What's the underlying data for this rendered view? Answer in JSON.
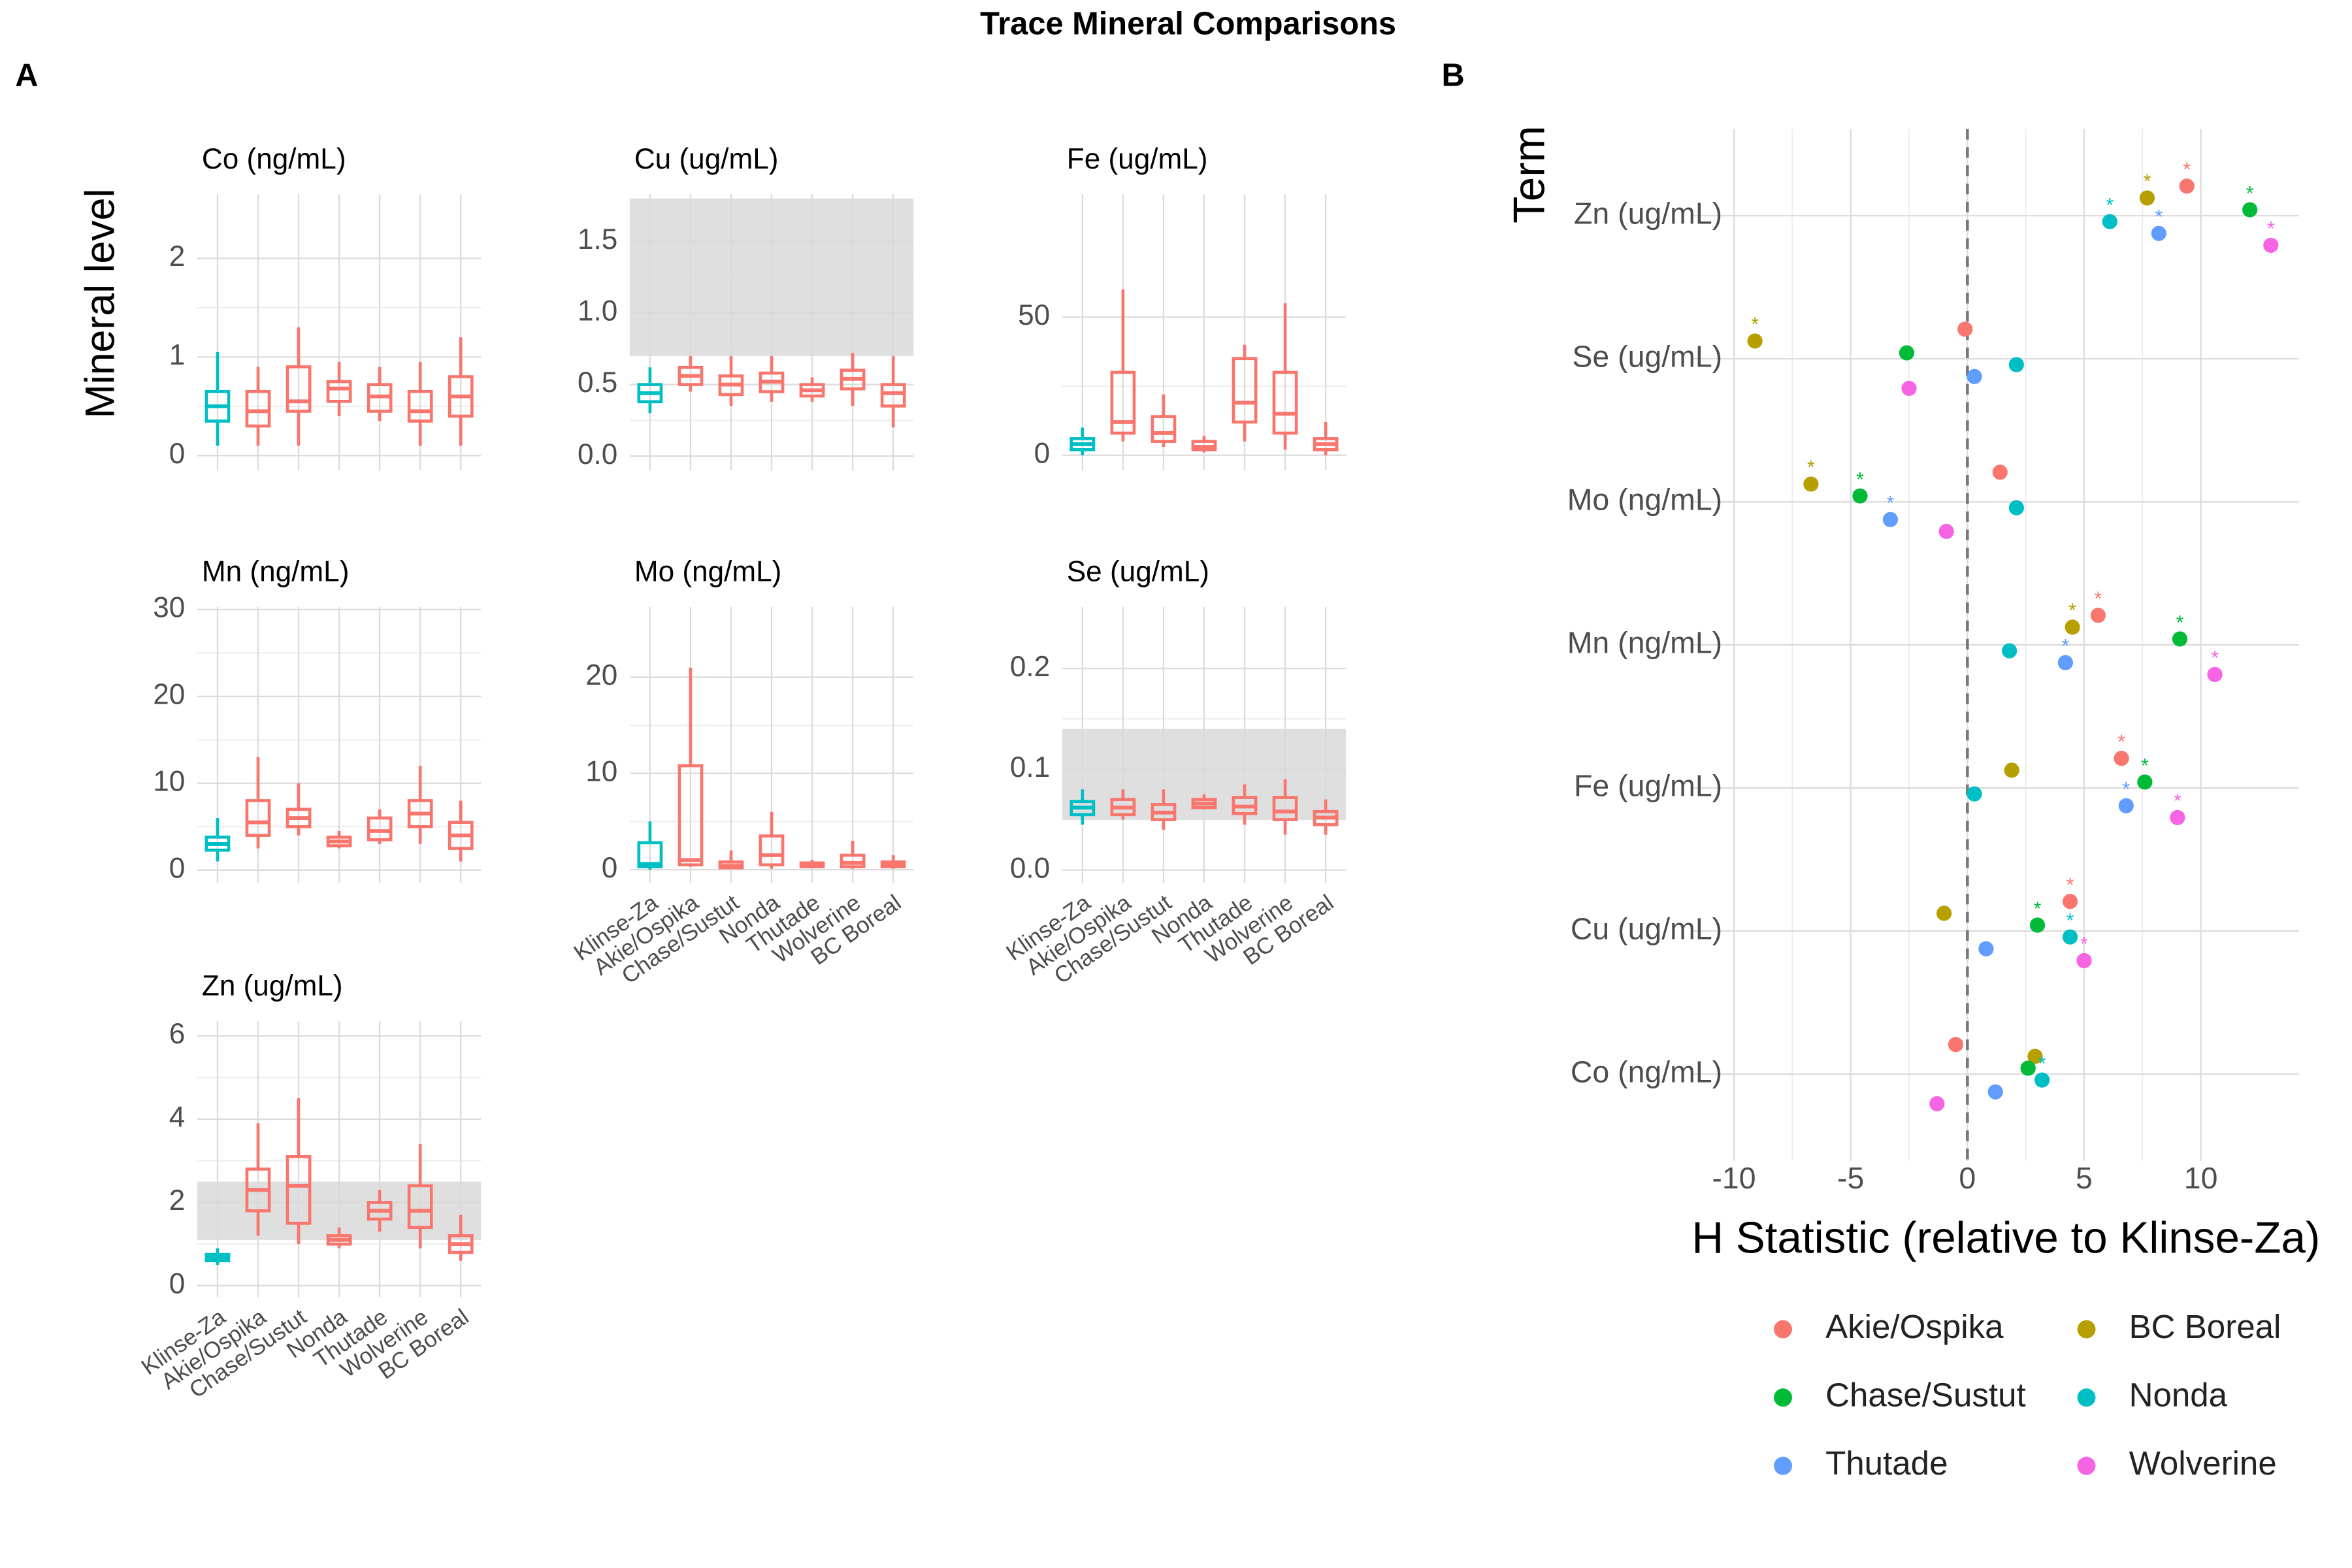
{
  "title": "Trace Mineral Comparisons",
  "panel_labels": [
    "A",
    "B"
  ],
  "y_label": "Mineral level",
  "chart_data": [
    {
      "type": "box",
      "title": "Co (ng/mL)",
      "show_x_labels": false,
      "categories": [
        "Klinse-Za",
        "Akie/Ospika",
        "Chase/Sustut",
        "Nonda",
        "Thutade",
        "Wolverine",
        "BC Boreal"
      ],
      "colors": [
        "#00BFC4",
        "#F8766D",
        "#F8766D",
        "#F8766D",
        "#F8766D",
        "#F8766D",
        "#F8766D"
      ],
      "q1": [
        0.35,
        0.3,
        0.45,
        0.55,
        0.45,
        0.35,
        0.4
      ],
      "median": [
        0.5,
        0.45,
        0.55,
        0.68,
        0.6,
        0.45,
        0.6
      ],
      "q3": [
        0.65,
        0.65,
        0.9,
        0.75,
        0.72,
        0.65,
        0.8
      ],
      "whisker_low": [
        0.1,
        0.1,
        0.1,
        0.4,
        0.35,
        0.1,
        0.1
      ],
      "whisker_high": [
        1.05,
        0.9,
        1.3,
        0.95,
        0.9,
        0.95,
        1.2
      ],
      "ylim": [
        -0.15,
        2.65
      ],
      "yticks": [
        0,
        1,
        2
      ],
      "grid": true
    },
    {
      "type": "box",
      "title": "Cu (ug/mL)",
      "show_x_labels": false,
      "categories": [
        "Klinse-Za",
        "Akie/Ospika",
        "Chase/Sustut",
        "Nonda",
        "Thutade",
        "Wolverine",
        "BC Boreal"
      ],
      "colors": [
        "#00BFC4",
        "#F8766D",
        "#F8766D",
        "#F8766D",
        "#F8766D",
        "#F8766D",
        "#F8766D"
      ],
      "q1": [
        0.38,
        0.5,
        0.43,
        0.45,
        0.42,
        0.47,
        0.35
      ],
      "median": [
        0.44,
        0.56,
        0.5,
        0.52,
        0.46,
        0.54,
        0.44
      ],
      "q3": [
        0.5,
        0.62,
        0.56,
        0.58,
        0.5,
        0.6,
        0.5
      ],
      "whisker_low": [
        0.3,
        0.45,
        0.35,
        0.38,
        0.38,
        0.35,
        0.2
      ],
      "whisker_high": [
        0.62,
        0.7,
        0.7,
        0.7,
        0.55,
        0.72,
        0.7
      ],
      "band": [
        0.7,
        1.8
      ],
      "band_color": "#d9d9d9",
      "ylim": [
        -0.1,
        1.83
      ],
      "yticks": [
        {
          "value": 0,
          "label": "0.0"
        },
        {
          "value": 0.5,
          "label": "0.5"
        },
        {
          "value": 1,
          "label": "1.0"
        },
        {
          "value": 1.5,
          "label": "1.5"
        }
      ],
      "grid": true
    },
    {
      "type": "box",
      "title": "Fe (ug/mL)",
      "show_x_labels": false,
      "categories": [
        "Klinse-Za",
        "Akie/Ospika",
        "Chase/Sustut",
        "Nonda",
        "Thutade",
        "Wolverine",
        "BC Boreal"
      ],
      "colors": [
        "#00BFC4",
        "#F8766D",
        "#F8766D",
        "#F8766D",
        "#F8766D",
        "#F8766D",
        "#F8766D"
      ],
      "q1": [
        2,
        8,
        5,
        2,
        12,
        8,
        2
      ],
      "median": [
        4,
        12,
        8,
        3,
        19,
        15,
        4
      ],
      "q3": [
        6,
        30,
        14,
        5,
        35,
        30,
        6
      ],
      "whisker_low": [
        0,
        5,
        3,
        1,
        5,
        2,
        0
      ],
      "whisker_high": [
        10,
        60,
        22,
        7,
        40,
        55,
        12
      ],
      "ylim": [
        -5.5,
        94.5
      ],
      "yticks": [
        0,
        50
      ],
      "grid": true
    },
    {
      "type": "box",
      "title": "Mn (ng/mL)",
      "show_x_labels": false,
      "categories": [
        "Klinse-Za",
        "Akie/Ospika",
        "Chase/Sustut",
        "Nonda",
        "Thutade",
        "Wolverine",
        "BC Boreal"
      ],
      "colors": [
        "#00BFC4",
        "#F8766D",
        "#F8766D",
        "#F8766D",
        "#F8766D",
        "#F8766D",
        "#F8766D"
      ],
      "q1": [
        2.3,
        4,
        5,
        2.8,
        3.5,
        5,
        2.5
      ],
      "median": [
        3,
        5.5,
        6,
        3.3,
        4.5,
        6.5,
        4
      ],
      "q3": [
        3.8,
        8,
        7,
        3.8,
        6,
        8,
        5.5
      ],
      "whisker_low": [
        1,
        2.5,
        4,
        2.5,
        3,
        3,
        1
      ],
      "whisker_high": [
        6,
        13,
        10,
        4.5,
        7,
        12,
        8
      ],
      "ylim": [
        -1.5,
        30.3
      ],
      "yticks": [
        0,
        10,
        20,
        30
      ],
      "grid": true
    },
    {
      "type": "box",
      "title": "Mo (ng/mL)",
      "show_x_labels": true,
      "categories": [
        "Klinse-Za",
        "Akie/Ospika",
        "Chase/Sustut",
        "Nonda",
        "Thutade",
        "Wolverine",
        "BC Boreal"
      ],
      "colors": [
        "#00BFC4",
        "#F8766D",
        "#F8766D",
        "#F8766D",
        "#F8766D",
        "#F8766D",
        "#F8766D"
      ],
      "q1": [
        0.3,
        0.5,
        0.2,
        0.5,
        0.3,
        0.3,
        0.3
      ],
      "median": [
        0.6,
        1,
        0.4,
        1.5,
        0.5,
        0.7,
        0.5
      ],
      "q3": [
        2.8,
        10.8,
        0.8,
        3.5,
        0.7,
        1.5,
        0.8
      ],
      "whisker_low": [
        0,
        0.3,
        0.1,
        0.1,
        0.2,
        0.1,
        0.1
      ],
      "whisker_high": [
        5,
        21,
        2,
        6,
        1,
        3,
        1.5
      ],
      "ylim": [
        -1.4,
        27.3
      ],
      "yticks": [
        0,
        10,
        20
      ],
      "grid": true
    },
    {
      "type": "box",
      "title": "Se (ug/mL)",
      "show_x_labels": true,
      "categories": [
        "Klinse-Za",
        "Akie/Ospika",
        "Chase/Sustut",
        "Nonda",
        "Thutade",
        "Wolverine",
        "BC Boreal"
      ],
      "colors": [
        "#00BFC4",
        "#F8766D",
        "#F8766D",
        "#F8766D",
        "#F8766D",
        "#F8766D",
        "#F8766D"
      ],
      "q1": [
        0.055,
        0.055,
        0.05,
        0.062,
        0.056,
        0.05,
        0.045
      ],
      "median": [
        0.062,
        0.062,
        0.057,
        0.066,
        0.063,
        0.058,
        0.052
      ],
      "q3": [
        0.068,
        0.07,
        0.065,
        0.07,
        0.072,
        0.072,
        0.058
      ],
      "whisker_low": [
        0.045,
        0.05,
        0.04,
        0.06,
        0.045,
        0.035,
        0.035
      ],
      "whisker_high": [
        0.08,
        0.08,
        0.08,
        0.075,
        0.085,
        0.09,
        0.07
      ],
      "band": [
        0.05,
        0.14
      ],
      "band_color": "#d9d9d9",
      "ylim": [
        -0.013,
        0.261
      ],
      "yticks": [
        {
          "value": 0,
          "label": "0.0"
        },
        {
          "value": 0.1,
          "label": "0.1"
        },
        {
          "value": 0.2,
          "label": "0.2"
        }
      ],
      "grid": true
    },
    {
      "type": "box",
      "title": "Zn (ug/mL)",
      "show_x_labels": true,
      "categories": [
        "Klinse-Za",
        "Akie/Ospika",
        "Chase/Sustut",
        "Nonda",
        "Thutade",
        "Wolverine",
        "BC Boreal"
      ],
      "colors": [
        "#00BFC4",
        "#F8766D",
        "#F8766D",
        "#F8766D",
        "#F8766D",
        "#F8766D",
        "#F8766D"
      ],
      "q1": [
        0.6,
        1.8,
        1.5,
        1.0,
        1.6,
        1.4,
        0.8
      ],
      "median": [
        0.68,
        2.3,
        2.4,
        1.1,
        1.8,
        1.8,
        1.0
      ],
      "q3": [
        0.75,
        2.8,
        3.1,
        1.2,
        2.0,
        2.4,
        1.2
      ],
      "whisker_low": [
        0.5,
        1.2,
        1,
        0.9,
        1.3,
        0.9,
        0.6
      ],
      "whisker_high": [
        0.9,
        3.9,
        4.5,
        1.4,
        2.3,
        3.4,
        1.7
      ],
      "band": [
        1.1,
        2.5
      ],
      "band_color": "#d9d9d9",
      "ylim": [
        -0.28,
        6.35
      ],
      "yticks": [
        0,
        2,
        4,
        6
      ],
      "grid": true
    },
    {
      "type": "dot",
      "x_label": "H Statistic (relative to Klinse-Za)",
      "y_label": "Term",
      "categories": [
        "Co (ng/mL)",
        "Cu (ug/mL)",
        "Fe (ug/mL)",
        "Mn (ng/mL)",
        "Mo (ng/mL)",
        "Se (ug/mL)",
        "Zn (ug/mL)"
      ],
      "series": [
        {
          "name": "Akie/Ospika",
          "color": "#F8766D",
          "values": [
            -0.5,
            4.4,
            6.6,
            5.6,
            1.4,
            -0.1,
            9.4
          ],
          "stars": [
            null,
            "*",
            "*",
            "*",
            null,
            null,
            "*"
          ]
        },
        {
          "name": "BC Boreal",
          "color": "#B79F00",
          "values": [
            2.9,
            -1.0,
            1.9,
            4.5,
            -6.7,
            -9.1,
            7.7
          ],
          "stars": [
            null,
            null,
            null,
            "*",
            "*",
            "*",
            "*"
          ]
        },
        {
          "name": "Chase/Sustut",
          "color": "#00BA38",
          "values": [
            2.6,
            3.0,
            7.6,
            9.1,
            -4.6,
            -2.6,
            12.1
          ],
          "stars": [
            null,
            "*",
            "*",
            "*",
            "*",
            null,
            "*"
          ]
        },
        {
          "name": "Nonda",
          "color": "#00BFC4",
          "values": [
            3.2,
            4.4,
            0.3,
            1.8,
            2.1,
            2.1,
            6.1
          ],
          "stars": [
            "*",
            "*",
            null,
            null,
            null,
            null,
            "*"
          ]
        },
        {
          "name": "Thutade",
          "color": "#619CFF",
          "values": [
            1.2,
            0.8,
            6.8,
            4.2,
            -3.3,
            0.3,
            8.2
          ],
          "stars": [
            null,
            null,
            "*",
            "*",
            "*",
            null,
            "*"
          ]
        },
        {
          "name": "Wolverine",
          "color": "#F564E3",
          "values": [
            -1.3,
            5.0,
            9.0,
            10.6,
            -0.9,
            -2.5,
            13.0
          ],
          "stars": [
            null,
            "*",
            "*",
            "*",
            null,
            null,
            "*"
          ]
        }
      ],
      "reference_line": 0,
      "xlim": [
        -11.8,
        14.2
      ],
      "xticks": [
        -10,
        -5,
        0,
        5,
        10
      ],
      "grid": true,
      "legend": "bottom"
    }
  ]
}
